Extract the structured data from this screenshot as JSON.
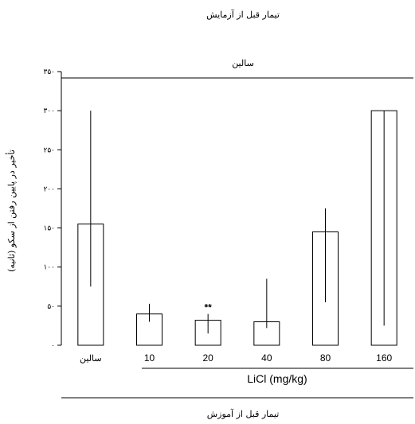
{
  "chart_data": {
    "type": "bar",
    "top_title": "تیمار قبل از آزمایش",
    "top_group_label": "سالین",
    "ylabel": "تأخیر در پایین رفتن از سکو (ثانیه)",
    "ylim": [
      0,
      350
    ],
    "yticks": [
      "۰",
      "۵۰",
      "۱۰۰",
      "۱۵۰",
      "۲۰۰",
      "۲۵۰",
      "۳۰۰",
      "۳۵۰"
    ],
    "ytick_values": [
      0,
      50,
      100,
      150,
      200,
      250,
      300,
      350
    ],
    "categories": [
      "سالین",
      "10",
      "20",
      "40",
      "80",
      "160"
    ],
    "values": [
      155,
      40,
      32,
      30,
      145,
      300
    ],
    "error_upper": [
      300,
      53,
      40,
      85,
      175,
      300
    ],
    "error_lower": [
      75,
      30,
      15,
      22,
      55,
      25
    ],
    "significance": [
      "",
      "",
      "**",
      "",
      "",
      ""
    ],
    "xgroup_label": "LiCl (mg/kg)",
    "bottom_title": "تیمار قبل از آموزش",
    "grid": false,
    "colors": {
      "bar_fill": "#ffffff",
      "stroke": "#000000"
    }
  }
}
